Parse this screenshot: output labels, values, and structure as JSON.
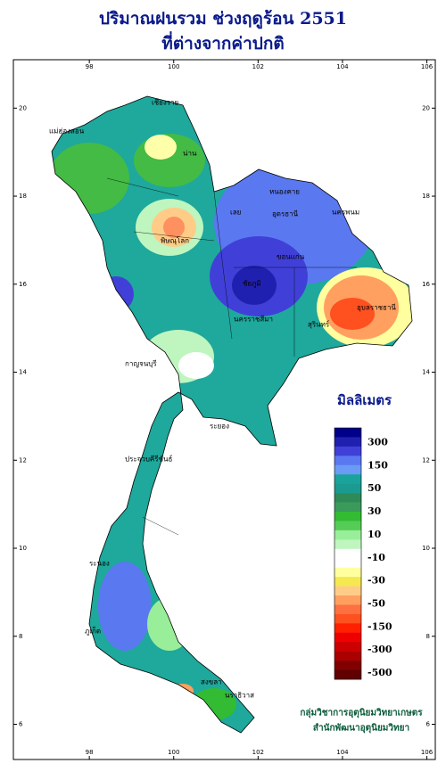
{
  "title": [
    "ปริมาณฝนรวม ช่วงฤดูร้อน 2551",
    "ที่ต่างจากค่าปกติ"
  ],
  "map": {
    "lon_range": [
      96.2,
      106.2
    ],
    "lat_range": [
      21.1,
      5.2
    ],
    "lon_ticks": [
      98,
      100,
      102,
      104,
      106
    ],
    "lat_ticks": [
      20,
      18,
      16,
      14,
      12,
      10,
      8,
      6
    ],
    "places": [
      "เชียงราย",
      "น่าน",
      "เลย",
      "หนองคาย",
      "อุดรธานี",
      "นครพนม",
      "ขอนแก่น",
      "ชัยภูมิ",
      "นครราชสีมา",
      "อุบลราชธานี",
      "กาญจนบุรี",
      "ระนอง",
      "ภูเก็ต",
      "สงขลา",
      "นราธิวาส",
      "ประจวบคีรีขันธ์",
      "แม่ฮ่องสอน",
      "พิษณุโลก",
      "สุรินทร์",
      "ระยอง"
    ]
  },
  "legend": {
    "title": "มิลลิเมตร",
    "labels": [
      300,
      150,
      50,
      30,
      10,
      -10,
      -30,
      -50,
      -150,
      -300,
      -500
    ],
    "colors": [
      "#00008b",
      "#2020b0",
      "#4040d8",
      "#5a78f0",
      "#6a9cf6",
      "#1aa39a",
      "#1a9a90",
      "#2e8b57",
      "#3a9a5a",
      "#33bb33",
      "#55cc55",
      "#99ee99",
      "#bff5bf",
      "#ffffff",
      "#ffffff",
      "#ffffa0",
      "#f5e850",
      "#ffcc88",
      "#ffa060",
      "#ff7040",
      "#ff5020",
      "#ff2000",
      "#ee0000",
      "#cc0000",
      "#aa0000",
      "#800000",
      "#600000"
    ]
  },
  "credits": [
    "กลุ่มวิชาการอุตุนิยมวิทยาเกษตร",
    "สำนักพัฒนาอุตุนิยมวิทยา"
  ]
}
